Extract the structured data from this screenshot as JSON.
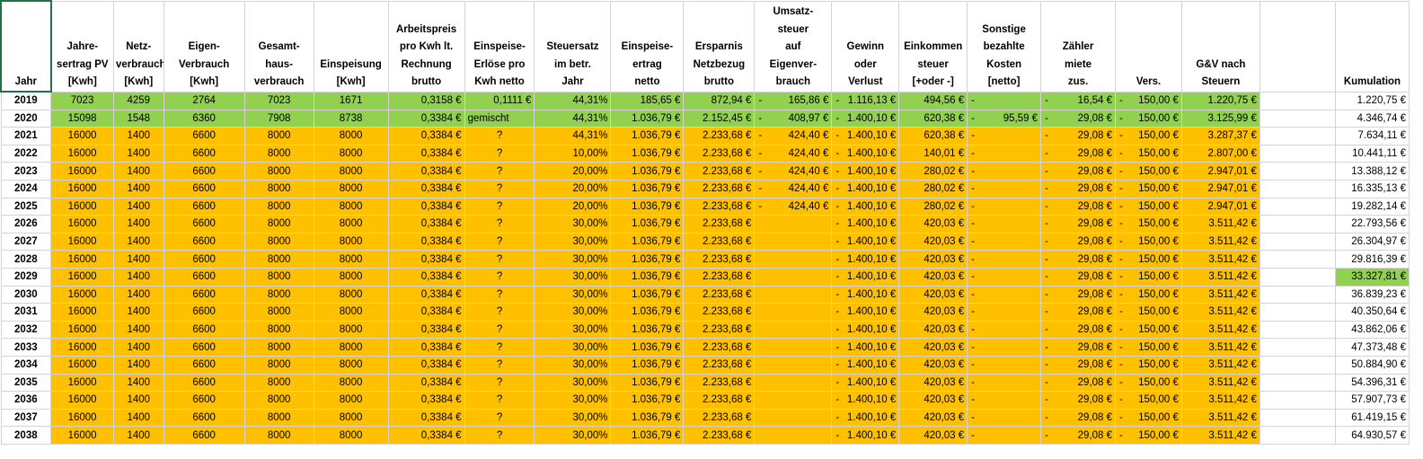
{
  "headers": [
    "Jahr",
    "Jahre-\nsertrag PV\n[Kwh]",
    "Netz-\nverbrauch\n[Kwh]",
    "Eigen-\nVerbrauch\n[Kwh]",
    "Gesamt-\nhaus-\nverbrauch",
    "Einspeisung\n[Kwh]",
    "Arbeitspreis\npro Kwh lt.\nRechnung\nbrutto",
    "Einspeise-\nErlöse pro\nKwh netto",
    "Steuersatz\nim betr.\nJahr",
    "Einspeise-\nertrag\nnetto",
    "Ersparnis\nNetzbezug\nbrutto",
    "Umsatz-\nsteuer\nauf\nEigenver-\nbrauch",
    "Gewinn\noder\nVerlust",
    "Einkommen\nsteuer\n[+oder -]",
    "Sonstige\nbezahlte\nKosten\n[netto]",
    "Zähler\nmiete\nzus.",
    "Vers.",
    "G&V nach\nSteuern",
    "",
    "Kumulation"
  ],
  "colors": {
    "green": "#92d050",
    "orange": "#ffc000",
    "selection": "#217346"
  },
  "rows": [
    {
      "color": "green",
      "jahr": "2019",
      "pv": "7023",
      "netz": "4259",
      "eigen": "2764",
      "gesamt": "7023",
      "einsp": "1671",
      "preis": "0,3158 €",
      "erloese": "0,1111 €",
      "steuer": "44,31%",
      "ertrag": "185,65 €",
      "ersparnis": "872,94 €",
      "ust": "165,86 €",
      "gewinn": "1.116,13 €",
      "est": "494,56 €",
      "sonst": "",
      "zaehler": "16,54 €",
      "vers": "150,00 €",
      "gv": "1.220,75 €",
      "kum": "1.220,75 €"
    },
    {
      "color": "green",
      "jahr": "2020",
      "pv": "15098",
      "netz": "1548",
      "eigen": "6360",
      "gesamt": "7908",
      "einsp": "8738",
      "preis": "0,3384 €",
      "erloese": "gemischt",
      "steuer": "44,31%",
      "ertrag": "1.036,79 €",
      "ersparnis": "2.152,45 €",
      "ust": "408,97 €",
      "gewinn": "1.400,10 €",
      "est": "620,38 €",
      "sonst": "95,59 €",
      "zaehler": "29,08 €",
      "vers": "150,00 €",
      "gv": "3.125,99 €",
      "kum": "4.346,74 €"
    },
    {
      "color": "orange",
      "jahr": "2021",
      "pv": "16000",
      "netz": "1400",
      "eigen": "6600",
      "gesamt": "8000",
      "einsp": "8000",
      "preis": "0,3384 €",
      "erloese": "?",
      "steuer": "44,31%",
      "ertrag": "1.036,79 €",
      "ersparnis": "2.233,68 €",
      "ust": "424,40 €",
      "gewinn": "1.400,10 €",
      "est": "620,38 €",
      "sonst": "",
      "zaehler": "29,08 €",
      "vers": "150,00 €",
      "gv": "3.287,37 €",
      "kum": "7.634,11 €"
    },
    {
      "color": "orange",
      "jahr": "2022",
      "pv": "16000",
      "netz": "1400",
      "eigen": "6600",
      "gesamt": "8000",
      "einsp": "8000",
      "preis": "0,3384 €",
      "erloese": "?",
      "steuer": "10,00%",
      "ertrag": "1.036,79 €",
      "ersparnis": "2.233,68 €",
      "ust": "424,40 €",
      "gewinn": "1.400,10 €",
      "est": "140,01 €",
      "sonst": "",
      "zaehler": "29,08 €",
      "vers": "150,00 €",
      "gv": "2.807,00 €",
      "kum": "10.441,11 €"
    },
    {
      "color": "orange",
      "jahr": "2023",
      "pv": "16000",
      "netz": "1400",
      "eigen": "6600",
      "gesamt": "8000",
      "einsp": "8000",
      "preis": "0,3384 €",
      "erloese": "?",
      "steuer": "20,00%",
      "ertrag": "1.036,79 €",
      "ersparnis": "2.233,68 €",
      "ust": "424,40 €",
      "gewinn": "1.400,10 €",
      "est": "280,02 €",
      "sonst": "",
      "zaehler": "29,08 €",
      "vers": "150,00 €",
      "gv": "2.947,01 €",
      "kum": "13.388,12 €"
    },
    {
      "color": "orange",
      "jahr": "2024",
      "pv": "16000",
      "netz": "1400",
      "eigen": "6600",
      "gesamt": "8000",
      "einsp": "8000",
      "preis": "0,3384 €",
      "erloese": "?",
      "steuer": "20,00%",
      "ertrag": "1.036,79 €",
      "ersparnis": "2.233,68 €",
      "ust": "424,40 €",
      "gewinn": "1.400,10 €",
      "est": "280,02 €",
      "sonst": "",
      "zaehler": "29,08 €",
      "vers": "150,00 €",
      "gv": "2.947,01 €",
      "kum": "16.335,13 €"
    },
    {
      "color": "orange",
      "jahr": "2025",
      "pv": "16000",
      "netz": "1400",
      "eigen": "6600",
      "gesamt": "8000",
      "einsp": "8000",
      "preis": "0,3384 €",
      "erloese": "?",
      "steuer": "20,00%",
      "ertrag": "1.036,79 €",
      "ersparnis": "2.233,68 €",
      "ust": "424,40 €",
      "gewinn": "1.400,10 €",
      "est": "280,02 €",
      "sonst": "",
      "zaehler": "29,08 €",
      "vers": "150,00 €",
      "gv": "2.947,01 €",
      "kum": "19.282,14 €"
    },
    {
      "color": "orange",
      "jahr": "2026",
      "pv": "16000",
      "netz": "1400",
      "eigen": "6600",
      "gesamt": "8000",
      "einsp": "8000",
      "preis": "0,3384 €",
      "erloese": "?",
      "steuer": "30,00%",
      "ertrag": "1.036,79 €",
      "ersparnis": "2.233,68 €",
      "ust": "",
      "gewinn": "1.400,10 €",
      "est": "420,03 €",
      "sonst": "",
      "zaehler": "29,08 €",
      "vers": "150,00 €",
      "gv": "3.511,42 €",
      "kum": "22.793,56 €"
    },
    {
      "color": "orange",
      "jahr": "2027",
      "pv": "16000",
      "netz": "1400",
      "eigen": "6600",
      "gesamt": "8000",
      "einsp": "8000",
      "preis": "0,3384 €",
      "erloese": "?",
      "steuer": "30,00%",
      "ertrag": "1.036,79 €",
      "ersparnis": "2.233,68 €",
      "ust": "",
      "gewinn": "1.400,10 €",
      "est": "420,03 €",
      "sonst": "",
      "zaehler": "29,08 €",
      "vers": "150,00 €",
      "gv": "3.511,42 €",
      "kum": "26.304,97 €"
    },
    {
      "color": "orange",
      "jahr": "2028",
      "pv": "16000",
      "netz": "1400",
      "eigen": "6600",
      "gesamt": "8000",
      "einsp": "8000",
      "preis": "0,3384 €",
      "erloese": "?",
      "steuer": "30,00%",
      "ertrag": "1.036,79 €",
      "ersparnis": "2.233,68 €",
      "ust": "",
      "gewinn": "1.400,10 €",
      "est": "420,03 €",
      "sonst": "",
      "zaehler": "29,08 €",
      "vers": "150,00 €",
      "gv": "3.511,42 €",
      "kum": "29.816,39 €"
    },
    {
      "color": "orange",
      "jahr": "2029",
      "pv": "16000",
      "netz": "1400",
      "eigen": "6600",
      "gesamt": "8000",
      "einsp": "8000",
      "preis": "0,3384 €",
      "erloese": "?",
      "steuer": "30,00%",
      "ertrag": "1.036,79 €",
      "ersparnis": "2.233,68 €",
      "ust": "",
      "gewinn": "1.400,10 €",
      "est": "420,03 €",
      "sonst": "",
      "zaehler": "29,08 €",
      "vers": "150,00 €",
      "gv": "3.511,42 €",
      "kum": "33.327,81 €",
      "kum_highlight": true
    },
    {
      "color": "orange",
      "jahr": "2030",
      "pv": "16000",
      "netz": "1400",
      "eigen": "6600",
      "gesamt": "8000",
      "einsp": "8000",
      "preis": "0,3384 €",
      "erloese": "?",
      "steuer": "30,00%",
      "ertrag": "1.036,79 €",
      "ersparnis": "2.233,68 €",
      "ust": "",
      "gewinn": "1.400,10 €",
      "est": "420,03 €",
      "sonst": "",
      "zaehler": "29,08 €",
      "vers": "150,00 €",
      "gv": "3.511,42 €",
      "kum": "36.839,23 €"
    },
    {
      "color": "orange",
      "jahr": "2031",
      "pv": "16000",
      "netz": "1400",
      "eigen": "6600",
      "gesamt": "8000",
      "einsp": "8000",
      "preis": "0,3384 €",
      "erloese": "?",
      "steuer": "30,00%",
      "ertrag": "1.036,79 €",
      "ersparnis": "2.233,68 €",
      "ust": "",
      "gewinn": "1.400,10 €",
      "est": "420,03 €",
      "sonst": "",
      "zaehler": "29,08 €",
      "vers": "150,00 €",
      "gv": "3.511,42 €",
      "kum": "40.350,64 €"
    },
    {
      "color": "orange",
      "jahr": "2032",
      "pv": "16000",
      "netz": "1400",
      "eigen": "6600",
      "gesamt": "8000",
      "einsp": "8000",
      "preis": "0,3384 €",
      "erloese": "?",
      "steuer": "30,00%",
      "ertrag": "1.036,79 €",
      "ersparnis": "2.233,68 €",
      "ust": "",
      "gewinn": "1.400,10 €",
      "est": "420,03 €",
      "sonst": "",
      "zaehler": "29,08 €",
      "vers": "150,00 €",
      "gv": "3.511,42 €",
      "kum": "43.862,06 €"
    },
    {
      "color": "orange",
      "jahr": "2033",
      "pv": "16000",
      "netz": "1400",
      "eigen": "6600",
      "gesamt": "8000",
      "einsp": "8000",
      "preis": "0,3384 €",
      "erloese": "?",
      "steuer": "30,00%",
      "ertrag": "1.036,79 €",
      "ersparnis": "2.233,68 €",
      "ust": "",
      "gewinn": "1.400,10 €",
      "est": "420,03 €",
      "sonst": "",
      "zaehler": "29,08 €",
      "vers": "150,00 €",
      "gv": "3.511,42 €",
      "kum": "47.373,48 €"
    },
    {
      "color": "orange",
      "jahr": "2034",
      "pv": "16000",
      "netz": "1400",
      "eigen": "6600",
      "gesamt": "8000",
      "einsp": "8000",
      "preis": "0,3384 €",
      "erloese": "?",
      "steuer": "30,00%",
      "ertrag": "1.036,79 €",
      "ersparnis": "2.233,68 €",
      "ust": "",
      "gewinn": "1.400,10 €",
      "est": "420,03 €",
      "sonst": "",
      "zaehler": "29,08 €",
      "vers": "150,00 €",
      "gv": "3.511,42 €",
      "kum": "50.884,90 €"
    },
    {
      "color": "orange",
      "jahr": "2035",
      "pv": "16000",
      "netz": "1400",
      "eigen": "6600",
      "gesamt": "8000",
      "einsp": "8000",
      "preis": "0,3384 €",
      "erloese": "?",
      "steuer": "30,00%",
      "ertrag": "1.036,79 €",
      "ersparnis": "2.233,68 €",
      "ust": "",
      "gewinn": "1.400,10 €",
      "est": "420,03 €",
      "sonst": "",
      "zaehler": "29,08 €",
      "vers": "150,00 €",
      "gv": "3.511,42 €",
      "kum": "54.396,31 €"
    },
    {
      "color": "orange",
      "jahr": "2036",
      "pv": "16000",
      "netz": "1400",
      "eigen": "6600",
      "gesamt": "8000",
      "einsp": "8000",
      "preis": "0,3384 €",
      "erloese": "?",
      "steuer": "30,00%",
      "ertrag": "1.036,79 €",
      "ersparnis": "2.233,68 €",
      "ust": "",
      "gewinn": "1.400,10 €",
      "est": "420,03 €",
      "sonst": "",
      "zaehler": "29,08 €",
      "vers": "150,00 €",
      "gv": "3.511,42 €",
      "kum": "57.907,73 €"
    },
    {
      "color": "orange",
      "jahr": "2037",
      "pv": "16000",
      "netz": "1400",
      "eigen": "6600",
      "gesamt": "8000",
      "einsp": "8000",
      "preis": "0,3384 €",
      "erloese": "?",
      "steuer": "30,00%",
      "ertrag": "1.036,79 €",
      "ersparnis": "2.233,68 €",
      "ust": "",
      "gewinn": "1.400,10 €",
      "est": "420,03 €",
      "sonst": "",
      "zaehler": "29,08 €",
      "vers": "150,00 €",
      "gv": "3.511,42 €",
      "kum": "61.419,15 €"
    },
    {
      "color": "orange",
      "jahr": "2038",
      "pv": "16000",
      "netz": "1400",
      "eigen": "6600",
      "gesamt": "8000",
      "einsp": "8000",
      "preis": "0,3384 €",
      "erloese": "?",
      "steuer": "30,00%",
      "ertrag": "1.036,79 €",
      "ersparnis": "2.233,68 €",
      "ust": "",
      "gewinn": "1.400,10 €",
      "est": "420,03 €",
      "sonst": "",
      "zaehler": "29,08 €",
      "vers": "150,00 €",
      "gv": "3.511,42 €",
      "kum": "64.930,57 €"
    }
  ]
}
